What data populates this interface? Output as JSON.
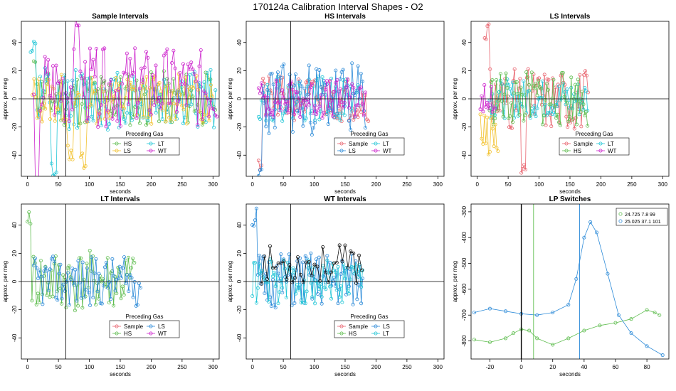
{
  "figure_title": "170124a   Calibration Interval Shapes - O2",
  "chart_data": [
    {
      "type": "line",
      "title": "Sample Intervals",
      "xlabel": "seconds",
      "ylabel": "approx. per meg",
      "xlim": [
        -10,
        310
      ],
      "ylim": [
        -55,
        55
      ],
      "xticks": [
        0,
        50,
        100,
        150,
        200,
        250,
        300
      ],
      "yticks": [
        -40,
        -20,
        0,
        20,
        40
      ],
      "vline": 62,
      "hline": 0,
      "legend": {
        "title": "Preceding Gas",
        "entries": [
          "HS",
          "LT",
          "LS",
          "WT"
        ]
      },
      "series": [
        {
          "name": "HS",
          "color": "#5fbd4f",
          "start": 10,
          "end": 305,
          "step": 2.6,
          "amp": 20,
          "seed": 11,
          "peaks": [
            [
              10,
              30
            ]
          ]
        },
        {
          "name": "LT",
          "color": "#22c6d6",
          "start": 5,
          "end": 305,
          "step": 2.6,
          "amp": 22,
          "seed": 12,
          "peaks": [
            [
              8,
              40
            ],
            [
              42,
              -50
            ]
          ]
        },
        {
          "name": "LS",
          "color": "#f2c230",
          "start": 8,
          "end": 300,
          "step": 2.6,
          "amp": 18,
          "seed": 13,
          "peaks": [
            [
              70,
              -40
            ],
            [
              90,
              -45
            ]
          ]
        },
        {
          "name": "WT",
          "color": "#cc22cc",
          "start": 10,
          "end": 308,
          "step": 2.6,
          "amp": 28,
          "seed": 14,
          "offset": 8,
          "peaks": [
            [
              15,
              -55
            ],
            [
              80,
              60
            ]
          ]
        }
      ]
    },
    {
      "type": "line",
      "title": "HS Intervals",
      "xlabel": "seconds",
      "ylabel": "approx. per meg",
      "xlim": [
        -10,
        310
      ],
      "ylim": [
        -55,
        55
      ],
      "xticks": [
        0,
        50,
        100,
        150,
        200,
        250,
        300
      ],
      "yticks": [
        -40,
        -20,
        0,
        20,
        40
      ],
      "vline": 62,
      "hline": 0,
      "legend": {
        "title": "Preceding Gas",
        "entries": [
          "Sample",
          "LT",
          "LS",
          "WT"
        ]
      },
      "series": [
        {
          "name": "Sample",
          "color": "#e8636e",
          "start": 10,
          "end": 190,
          "step": 2.4,
          "amp": 16,
          "seed": 21,
          "peaks": [
            [
              10,
              -50
            ]
          ]
        },
        {
          "name": "LT",
          "color": "#22c6d6",
          "start": 10,
          "end": 175,
          "step": 2.4,
          "amp": 16,
          "seed": 22
        },
        {
          "name": "LS",
          "color": "#2d8bd8",
          "start": 10,
          "end": 185,
          "step": 2.4,
          "amp": 26,
          "seed": 23,
          "peaks": [
            [
              12,
              -52
            ]
          ]
        },
        {
          "name": "WT",
          "color": "#cc22cc",
          "start": 10,
          "end": 185,
          "step": 2.4,
          "amp": 14,
          "seed": 24
        }
      ]
    },
    {
      "type": "line",
      "title": "LS Intervals",
      "xlabel": "seconds",
      "ylabel": "approx. per meg",
      "xlim": [
        -10,
        310
      ],
      "ylim": [
        -55,
        55
      ],
      "xticks": [
        0,
        50,
        100,
        150,
        200,
        250,
        300
      ],
      "yticks": [
        -40,
        -20,
        0,
        20,
        40
      ],
      "vline": null,
      "hline": 0,
      "legend": {
        "title": "Preceding Gas",
        "entries": [
          "Sample",
          "LT",
          "HS",
          "WT"
        ]
      },
      "series": [
        {
          "name": "Sample",
          "color": "#e8636e",
          "start": 12,
          "end": 180,
          "step": 2.2,
          "amp": 22,
          "seed": 31,
          "peaks": [
            [
              15,
              50
            ],
            [
              75,
              -55
            ]
          ]
        },
        {
          "name": "LT",
          "color": "#22c6d6",
          "start": 20,
          "end": 180,
          "step": 2.2,
          "amp": 14,
          "seed": 32
        },
        {
          "name": "HS",
          "color": "#5fbd4f",
          "start": 20,
          "end": 180,
          "step": 2.2,
          "amp": 20,
          "seed": 33
        },
        {
          "name": "WT",
          "color": "#cc22cc",
          "start": 5,
          "end": 30,
          "step": 2.2,
          "amp": 10,
          "seed": 34
        },
        {
          "name": "LS",
          "color": "#f2c230",
          "start": 5,
          "end": 35,
          "step": 2.2,
          "amp": 15,
          "seed": 35,
          "offset": -25
        }
      ]
    },
    {
      "type": "line",
      "title": "LT Intervals",
      "xlabel": "seconds",
      "ylabel": "approx. per meg",
      "xlim": [
        -10,
        310
      ],
      "ylim": [
        -55,
        55
      ],
      "xticks": [
        0,
        50,
        100,
        150,
        200,
        250,
        300
      ],
      "yticks": [
        -40,
        -20,
        0,
        20,
        40
      ],
      "vline": 62,
      "hline": 0,
      "legend": {
        "title": "Preceding Gas",
        "entries": [
          "Sample",
          "LS",
          "HS",
          "WT"
        ]
      },
      "series": [
        {
          "name": "HS",
          "color": "#5fbd4f",
          "start": 0,
          "end": 175,
          "step": 2.4,
          "amp": 22,
          "seed": 41,
          "peaks": [
            [
              2,
              50
            ]
          ]
        },
        {
          "name": "LS",
          "color": "#2d8bd8",
          "start": 10,
          "end": 185,
          "step": 2.4,
          "amp": 18,
          "seed": 42
        }
      ]
    },
    {
      "type": "line",
      "title": "WT Intervals",
      "xlabel": "seconds",
      "ylabel": "approx. per meg",
      "xlim": [
        -10,
        310
      ],
      "ylim": [
        -55,
        55
      ],
      "xticks": [
        0,
        50,
        100,
        150,
        200,
        250,
        300
      ],
      "yticks": [
        -40,
        -20,
        0,
        20,
        40
      ],
      "vline": 62,
      "hline": 0,
      "legend": {
        "title": "Preceding Gas",
        "entries": [
          "Sample",
          "LS",
          "HS",
          "LT"
        ]
      },
      "series": [
        {
          "name": "LS",
          "color": "#2d8bd8",
          "start": 0,
          "end": 180,
          "step": 2.2,
          "amp": 20,
          "seed": 51,
          "peaks": [
            [
              2,
              48
            ]
          ]
        },
        {
          "name": "LT",
          "color": "#22c6d6",
          "start": 0,
          "end": 180,
          "step": 2.2,
          "amp": 16,
          "seed": 52
        },
        {
          "name": "Black",
          "color": "#111111",
          "start": 15,
          "end": 180,
          "step": 4.5,
          "amp": 14,
          "seed": 53,
          "offset": 12
        }
      ]
    },
    {
      "type": "line",
      "title": "LP Switches",
      "xlabel": "seconds",
      "ylabel": "approx. per meg",
      "xlim": [
        -32,
        94
      ],
      "ylim": [
        -870,
        -270
      ],
      "xticks": [
        -20,
        0,
        20,
        40,
        60,
        80
      ],
      "yticks": [
        -800,
        -700,
        -600,
        -500,
        -400,
        -300
      ],
      "hline": null,
      "vlines": [
        {
          "x": 0,
          "color": "#000000"
        },
        {
          "x": 7.8,
          "color": "#5fbd4f"
        },
        {
          "x": 37.1,
          "color": "#2d8bd8"
        }
      ],
      "legend": {
        "entries": [
          "24.725 7.8 99",
          "25.025 37.1 101"
        ]
      },
      "series": [
        {
          "name": "24.725 7.8 99",
          "color": "#5fbd4f",
          "x": [
            -30,
            -20,
            -10,
            -5,
            0,
            5,
            10,
            20,
            30,
            40,
            50,
            60,
            70,
            80,
            85,
            88
          ],
          "y": [
            -795,
            -805,
            -790,
            -770,
            -755,
            -760,
            -790,
            -815,
            -790,
            -760,
            -740,
            -730,
            -715,
            -680,
            -690,
            -700
          ]
        },
        {
          "name": "25.025 37.1 101",
          "color": "#2d8bd8",
          "x": [
            -30,
            -20,
            -10,
            0,
            10,
            20,
            30,
            35,
            40,
            44,
            48,
            55,
            62,
            70,
            80,
            90
          ],
          "y": [
            -690,
            -675,
            -685,
            -695,
            -700,
            -690,
            -660,
            -560,
            -400,
            -340,
            -380,
            -540,
            -700,
            -770,
            -820,
            -855
          ]
        }
      ]
    }
  ]
}
